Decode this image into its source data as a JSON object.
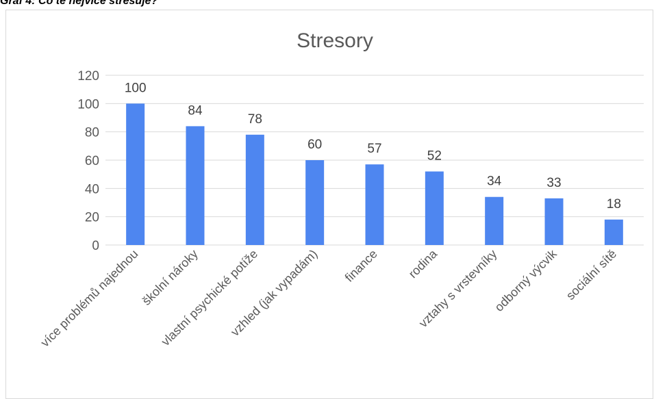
{
  "caption": "Graf 4: Co tě nejvíce stresuje?",
  "chart_data": {
    "type": "bar",
    "title": "Stresory",
    "xlabel": "",
    "ylabel": "",
    "categories": [
      "více problémů najednou",
      "školní nároky",
      "vlastní psychické potíže",
      "vzhled (jak vypadám)",
      "finance",
      "rodina",
      "vztahy s vrstevníky",
      "odborný výcvik",
      "sociální sítě"
    ],
    "values": [
      100,
      84,
      78,
      60,
      57,
      52,
      34,
      33,
      18
    ],
    "ylim": [
      0,
      120
    ],
    "yticks": [
      "0",
      "20",
      "40",
      "60",
      "80",
      "100",
      "120"
    ],
    "grid": true,
    "legend": "none",
    "bar_color": "#4e86f0"
  }
}
